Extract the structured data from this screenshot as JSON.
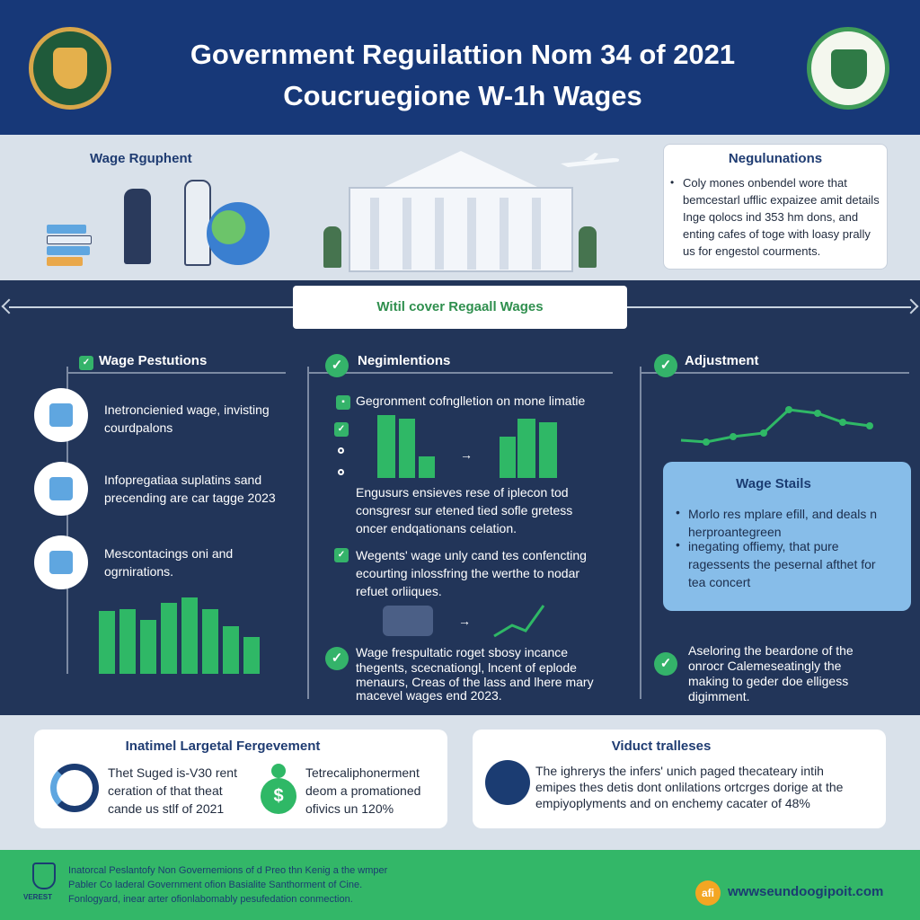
{
  "header": {
    "title_line1": "Government Reguilattion Nom 34 of 2021",
    "title_line2": "Coucruegione W-1h Wages"
  },
  "top_band": {
    "left_title": "Wage Rguphent",
    "regulations_box": {
      "title": "Negulunations",
      "text": "Coly mones onbendel wore that bemcestarl ufflic expaizee amit details Inge qolocs ind 353 hm dons, and enting cafes of toge with loasy prally us for engestol courments."
    }
  },
  "banner": {
    "label": "Witil cover Regaall Wages"
  },
  "columns": {
    "left": {
      "title": "Wage Pestutions",
      "items": [
        {
          "text_1": "Inetroncienied wage, invisting",
          "text_2": "courdpalons"
        },
        {
          "text_1": "Infopregatiaa suplatins sand",
          "text_2": "precending are car tagge 2023"
        },
        {
          "text_1": "Mescontacings oni and",
          "text_2": "ogrnirations."
        }
      ],
      "bars": [
        0.58,
        0.6,
        0.5,
        0.66,
        0.71,
        0.6,
        0.44,
        0.34
      ]
    },
    "middle": {
      "title": "Negimlentions",
      "intro": "Gegronment cofnglletion on mone limatie",
      "para1": [
        "Engusurs ensieves rese of iplecon tod",
        "consgresr sur etened tied sofle gretess",
        "oncer endqationans celation."
      ],
      "para2": [
        "Wegents' wage unly cand tes confencting",
        "ecourting inlossfring the werthe to nodar",
        "refuet orliiques."
      ],
      "para3": [
        "Wage frespultatic roget sbosy incance",
        "thegents, scecnationgl, lncent of eplode",
        "menaurs, Creas of the lass and lhere mary",
        "macevel wages end 2023."
      ]
    },
    "right": {
      "title": "Adjustment",
      "stats_box": {
        "title": "Wage Stails",
        "bullet1": "Morlo res mplare efill, and deals n herproantegreen",
        "bullet2": "inegating offiemy, that pure ragessents the pesernal afthet for tea concert"
      },
      "bottom": [
        "Aseloring the beardone of the",
        "onrocr Calemeseatingly the",
        "making to geder doe elligess",
        "digimment."
      ]
    }
  },
  "cards": {
    "left": {
      "title": "Inatimel Largetal Fergevement",
      "text1": [
        "Thet Suged is-V30 rent",
        "ceration of that theat",
        "cande us stlf of 2021"
      ],
      "text2": [
        "Tetrecaliphonerment",
        "deom a promationed",
        "ofivics un 120%"
      ]
    },
    "right": {
      "title": "Viduct tralleses",
      "text": [
        "The ighrerys the infers' unich paged thecateary intih",
        "emipes thes detis dont onlilations ortcrges dorige at the",
        "empiyoplyments and on enchemy cacater of 48%"
      ]
    }
  },
  "footer": {
    "text": [
      "Inatorcal Peslantofy  Non Governemions of d Preo thn Kenig a the wmper",
      "Pabler Co laderal Government ofion Basialite Santhorment of Cine.",
      "Fonlogyard, inear arter ofionlabomably pesufedation conmection."
    ],
    "shield_label": "VEREST",
    "logo": "afi",
    "url": "wwwseundoogipoit.com"
  }
}
